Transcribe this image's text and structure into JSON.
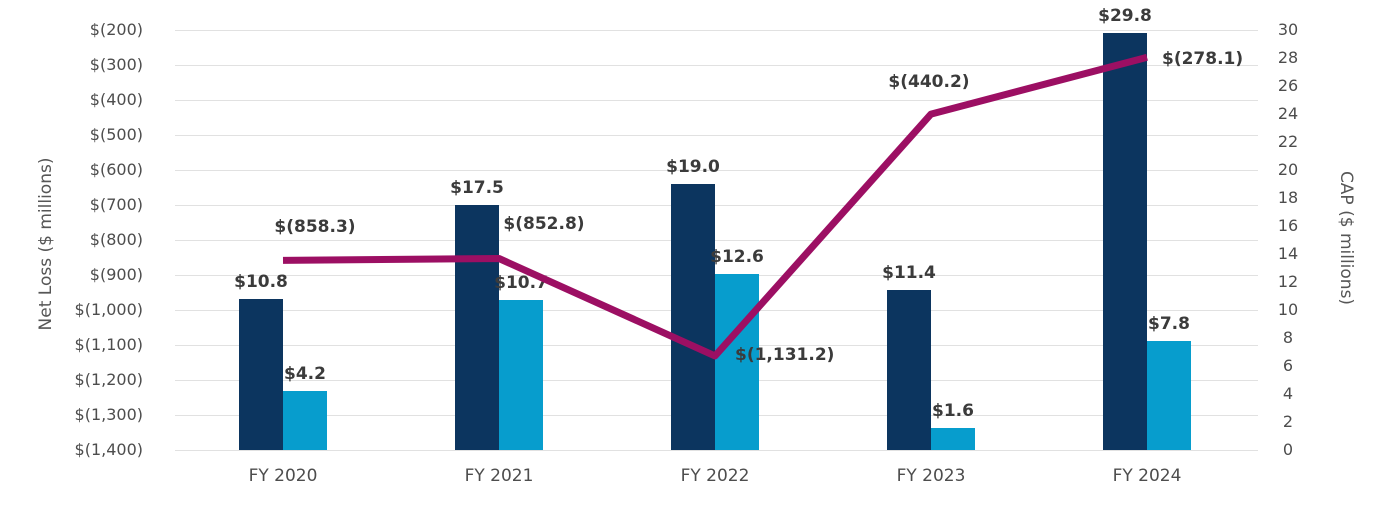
{
  "chart_data": {
    "type": "combo",
    "categories": [
      "FY 2020",
      "FY 2021",
      "FY 2022",
      "FY 2023",
      "FY 2024"
    ],
    "series": [
      {
        "name": "cap-dark-bar",
        "type": "bar",
        "axis": "right",
        "color": "#0c355f",
        "values": [
          10.8,
          17.5,
          19.0,
          11.4,
          29.8
        ],
        "labels": [
          "$10.8",
          "$17.5",
          "$19.0",
          "$11.4",
          "$29.8"
        ]
      },
      {
        "name": "cap-light-bar",
        "type": "bar",
        "axis": "right",
        "color": "#079dcd",
        "values": [
          4.2,
          10.7,
          12.6,
          1.6,
          7.8
        ],
        "labels": [
          "$4.2",
          "$10.7",
          "$12.6",
          "$1.6",
          "$7.8"
        ]
      },
      {
        "name": "net-loss-line",
        "type": "line",
        "axis": "left",
        "color": "#9c0f63",
        "values": [
          -858.3,
          -852.8,
          -1131.2,
          -440.2,
          -278.1
        ],
        "labels": [
          "$(858.3)",
          "$(852.8)",
          "$(1,131.2)",
          "$(440.2)",
          "$(278.1)"
        ]
      }
    ],
    "left_axis": {
      "title": "Net Loss ($ millions)",
      "max": -200,
      "min": -1400,
      "ticks": [
        "$(200)",
        "$(300)",
        "$(400)",
        "$(500)",
        "$(600)",
        "$(700)",
        "$(800)",
        "$(900)",
        "$(1,000)",
        "$(1,100)",
        "$(1,200)",
        "$(1,300)",
        "$(1,400)"
      ]
    },
    "right_axis": {
      "title": "CAP ($ millions)",
      "max": 30,
      "min": 0,
      "ticks": [
        "30",
        "28",
        "26",
        "24",
        "22",
        "20",
        "18",
        "16",
        "14",
        "12",
        "10",
        "8",
        "6",
        "4",
        "2",
        "0"
      ]
    },
    "grid": true,
    "legend": "none"
  },
  "colors": {
    "background": "#ffffff",
    "gridline": "#e1e1e1",
    "tick_text": "#4d4d4d",
    "data_label": "#3b3b3b",
    "axis_title": "#565656"
  }
}
